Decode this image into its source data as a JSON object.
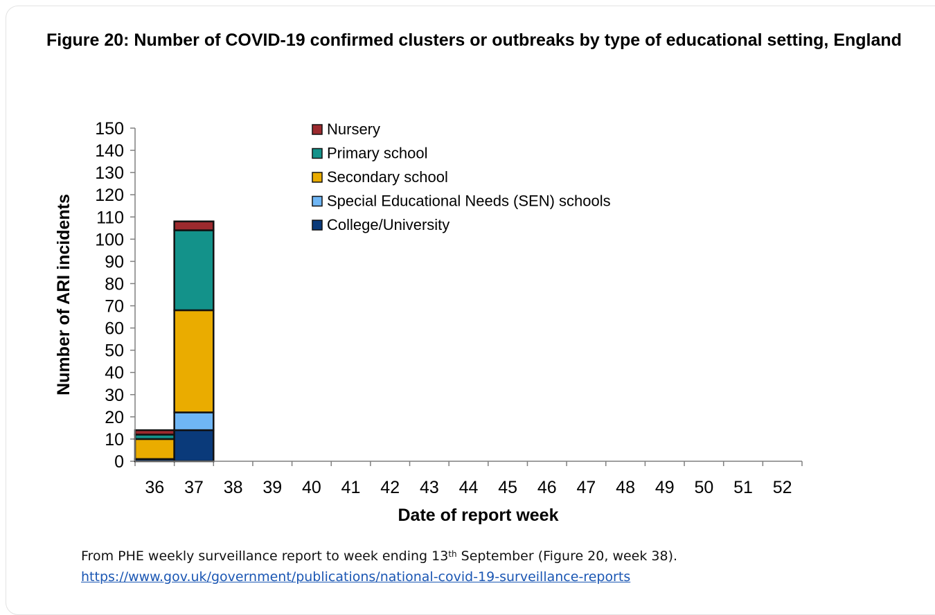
{
  "figure": {
    "title": "Figure 20: Number of COVID-19 confirmed clusters or outbreaks by type of educational setting, England"
  },
  "chart_data": {
    "type": "bar",
    "stacked": true,
    "title": "",
    "xlabel": "Date of report week",
    "ylabel": "Number of ARI incidents",
    "ylim": [
      0,
      150
    ],
    "y_ticks": [
      0,
      10,
      20,
      30,
      40,
      50,
      60,
      70,
      80,
      90,
      100,
      110,
      120,
      130,
      140,
      150
    ],
    "categories": [
      "36",
      "37",
      "38",
      "39",
      "40",
      "41",
      "42",
      "43",
      "44",
      "45",
      "46",
      "47",
      "48",
      "49",
      "50",
      "51",
      "52"
    ],
    "grid": false,
    "legend_position": "top",
    "series": [
      {
        "name": "College/University",
        "color": "#0a3a7a",
        "values": [
          1,
          14,
          null,
          null,
          null,
          null,
          null,
          null,
          null,
          null,
          null,
          null,
          null,
          null,
          null,
          null,
          null
        ]
      },
      {
        "name": "Special Educational Needs (SEN) schools",
        "color": "#6fb6f5",
        "values": [
          0,
          8,
          null,
          null,
          null,
          null,
          null,
          null,
          null,
          null,
          null,
          null,
          null,
          null,
          null,
          null,
          null
        ]
      },
      {
        "name": "Secondary school",
        "color": "#eaac00",
        "values": [
          9,
          46,
          null,
          null,
          null,
          null,
          null,
          null,
          null,
          null,
          null,
          null,
          null,
          null,
          null,
          null,
          null
        ]
      },
      {
        "name": "Primary school",
        "color": "#13928a",
        "values": [
          2,
          36,
          null,
          null,
          null,
          null,
          null,
          null,
          null,
          null,
          null,
          null,
          null,
          null,
          null,
          null,
          null
        ]
      },
      {
        "name": "Nursery",
        "color": "#9c2a2e",
        "values": [
          2,
          4,
          null,
          null,
          null,
          null,
          null,
          null,
          null,
          null,
          null,
          null,
          null,
          null,
          null,
          null,
          null
        ]
      }
    ],
    "legend_order": [
      "Nursery",
      "Primary school",
      "Secondary school",
      "Special Educational Needs (SEN) schools",
      "College/University"
    ]
  },
  "caption": {
    "text_before": "From PHE weekly surveillance report to week ending 13",
    "superscript": "th",
    "text_after": " September (Figure 20, week 38).",
    "link": "https://www.gov.uk/government/publications/national-covid-19-surveillance-reports"
  }
}
